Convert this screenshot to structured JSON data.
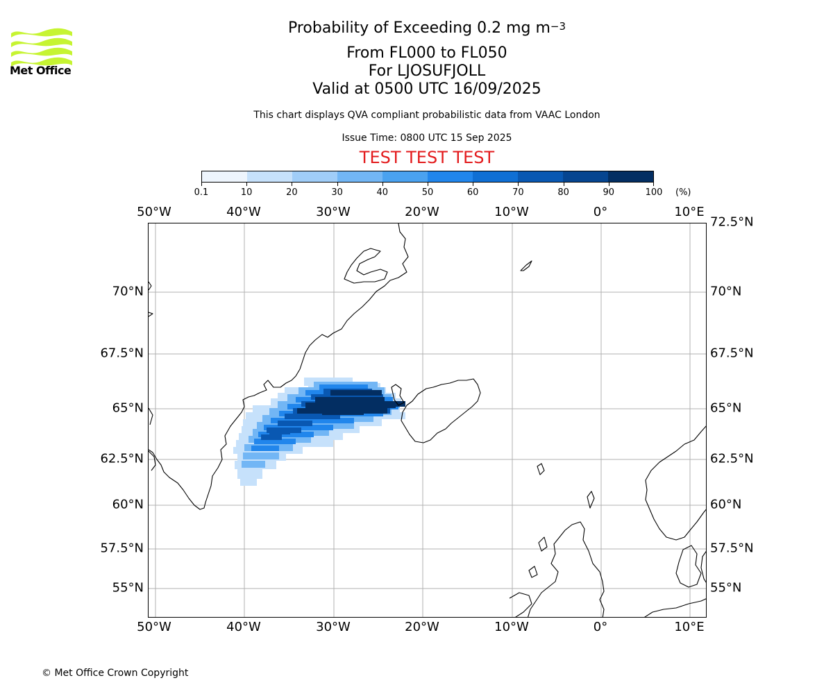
{
  "logo": {
    "text": "Met Office",
    "color": "#c6f432"
  },
  "header": {
    "title_main": "Probability of Exceeding 0.2 mg m",
    "title_exponent": "−3",
    "level_range": "From FL000 to FL050",
    "volcano": "For LJOSUFJOLL",
    "valid_time": "Valid at 0500 UTC 16/09/2025",
    "subtitle": "This chart displays QVA compliant probabilistic data from VAAC London",
    "issue_time": "Issue Time: 0800 UTC 15 Sep 2025",
    "test_banner": "TEST TEST TEST",
    "test_banner_color": "#e31a1c"
  },
  "colorbar": {
    "tick_labels": [
      "0.1",
      "10",
      "20",
      "30",
      "40",
      "50",
      "60",
      "70",
      "80",
      "90",
      "100"
    ],
    "unit": "(%)",
    "colors": [
      "#eef5fd",
      "#c6e1fb",
      "#a0cdf8",
      "#72b6f5",
      "#4aa2f0",
      "#2186ec",
      "#0f6fd4",
      "#0958b2",
      "#064590",
      "#032e62"
    ]
  },
  "map": {
    "lon_labels": [
      "50°W",
      "40°W",
      "30°W",
      "20°W",
      "10°W",
      "0°",
      "10°E"
    ],
    "lat_labels_top_right": "72.5°N",
    "lat_labels": [
      "70°N",
      "67.5°N",
      "65°N",
      "62.5°N",
      "60°N",
      "57.5°N",
      "55°N"
    ],
    "gridline_color": "#b0b0b0",
    "coastline_color": "#000000",
    "plume_description_colors": [
      "#c6e1fb",
      "#72b6f5",
      "#2186ec",
      "#0958b2",
      "#032e62"
    ]
  },
  "footer": {
    "copyright": "© Met Office Crown Copyright"
  }
}
